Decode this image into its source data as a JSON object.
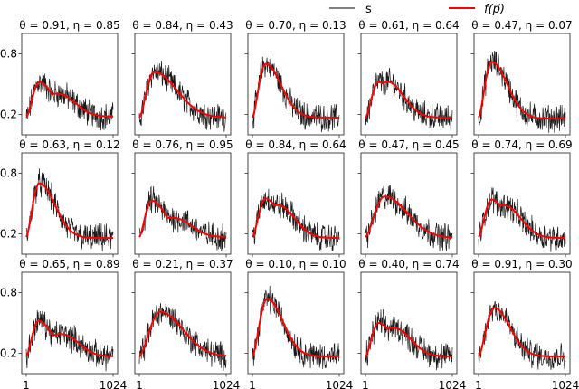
{
  "legend": {
    "items": [
      {
        "label": "s",
        "color": "#000000",
        "type": "line",
        "width": 0.8
      },
      {
        "label": "f(p⃗)",
        "color": "#ff0000",
        "type": "line",
        "width": 2
      }
    ]
  },
  "colors": {
    "signal": "#1a1a1a",
    "fit": "#ff0000",
    "frame": "#333333"
  },
  "chart_data": {
    "type": "line",
    "layout": {
      "rows": 3,
      "cols": 5,
      "sharex": true,
      "sharey": true,
      "legend_position": "top-right"
    },
    "xlabel": "",
    "ylabel": "",
    "xlim": [
      1,
      1024
    ],
    "ylim": [
      0.0,
      1.0
    ],
    "xticks": [
      1,
      1024
    ],
    "xtick_labels": [
      "1",
      "1024"
    ],
    "yticks": [
      0.2,
      0.8
    ],
    "ytick_labels": [
      "0.2",
      "0.8"
    ],
    "series_names": [
      "s",
      "f(p⃗)"
    ],
    "panels": [
      {
        "title": "θ = 0.91, η = 0.85",
        "theta": 0.91,
        "eta": 0.85,
        "fit_shape": {
          "start": 0.17,
          "peak1": [
            0.15,
            0.52
          ],
          "peak2": [
            0.42,
            0.4
          ],
          "end": 0.18
        }
      },
      {
        "title": "θ = 0.84, η = 0.43",
        "theta": 0.84,
        "eta": 0.43,
        "fit_shape": {
          "start": 0.17,
          "peak1": [
            0.17,
            0.62
          ],
          "peak2": null,
          "end": 0.17
        }
      },
      {
        "title": "θ = 0.70, η = 0.13",
        "theta": 0.7,
        "eta": 0.13,
        "fit_shape": {
          "start": 0.17,
          "peak1": [
            0.15,
            0.7
          ],
          "peak2": null,
          "end": 0.17
        }
      },
      {
        "title": "θ = 0.61, η = 0.64",
        "theta": 0.61,
        "eta": 0.64,
        "fit_shape": {
          "start": 0.17,
          "peak1": [
            0.15,
            0.52
          ],
          "peak2": [
            0.3,
            0.48
          ],
          "end": 0.17
        }
      },
      {
        "title": "θ = 0.47, η = 0.07",
        "theta": 0.47,
        "eta": 0.07,
        "fit_shape": {
          "start": 0.17,
          "peak1": [
            0.15,
            0.72
          ],
          "peak2": null,
          "end": 0.16
        }
      },
      {
        "title": "θ = 0.63, η = 0.12",
        "theta": 0.63,
        "eta": 0.12,
        "fit_shape": {
          "start": 0.17,
          "peak1": [
            0.15,
            0.7
          ],
          "peak2": null,
          "end": 0.16
        }
      },
      {
        "title": "θ = 0.76, η = 0.95",
        "theta": 0.76,
        "eta": 0.95,
        "fit_shape": {
          "start": 0.17,
          "peak1": [
            0.14,
            0.53
          ],
          "peak2": [
            0.45,
            0.36
          ],
          "end": 0.17
        }
      },
      {
        "title": "θ = 0.84, η = 0.64",
        "theta": 0.84,
        "eta": 0.64,
        "fit_shape": {
          "start": 0.17,
          "peak1": [
            0.15,
            0.55
          ],
          "peak2": [
            0.35,
            0.45
          ],
          "end": 0.16
        }
      },
      {
        "title": "θ = 0.47, η = 0.45",
        "theta": 0.47,
        "eta": 0.45,
        "fit_shape": {
          "start": 0.17,
          "peak1": [
            0.22,
            0.57
          ],
          "peak2": null,
          "end": 0.16
        }
      },
      {
        "title": "θ = 0.74, η = 0.69",
        "theta": 0.74,
        "eta": 0.69,
        "fit_shape": {
          "start": 0.17,
          "peak1": [
            0.15,
            0.54
          ],
          "peak2": [
            0.35,
            0.45
          ],
          "end": 0.16
        }
      },
      {
        "title": "θ = 0.65, η = 0.89",
        "theta": 0.65,
        "eta": 0.89,
        "fit_shape": {
          "start": 0.17,
          "peak1": [
            0.14,
            0.52
          ],
          "peak2": [
            0.45,
            0.4
          ],
          "end": 0.17
        }
      },
      {
        "title": "θ = 0.21, η = 0.37",
        "theta": 0.21,
        "eta": 0.37,
        "fit_shape": {
          "start": 0.17,
          "peak1": [
            0.24,
            0.61
          ],
          "peak2": null,
          "end": 0.17
        }
      },
      {
        "title": "θ = 0.10, η = 0.10",
        "theta": 0.1,
        "eta": 0.1,
        "fit_shape": {
          "start": 0.17,
          "peak1": [
            0.17,
            0.74
          ],
          "peak2": null,
          "end": 0.17
        }
      },
      {
        "title": "θ = 0.40, η = 0.74",
        "theta": 0.4,
        "eta": 0.74,
        "fit_shape": {
          "start": 0.17,
          "peak1": [
            0.15,
            0.5
          ],
          "peak2": [
            0.38,
            0.44
          ],
          "end": 0.17
        }
      },
      {
        "title": "θ = 0.91, η = 0.30",
        "theta": 0.91,
        "eta": 0.3,
        "fit_shape": {
          "start": 0.17,
          "peak1": [
            0.18,
            0.65
          ],
          "peak2": null,
          "end": 0.17
        }
      }
    ]
  }
}
